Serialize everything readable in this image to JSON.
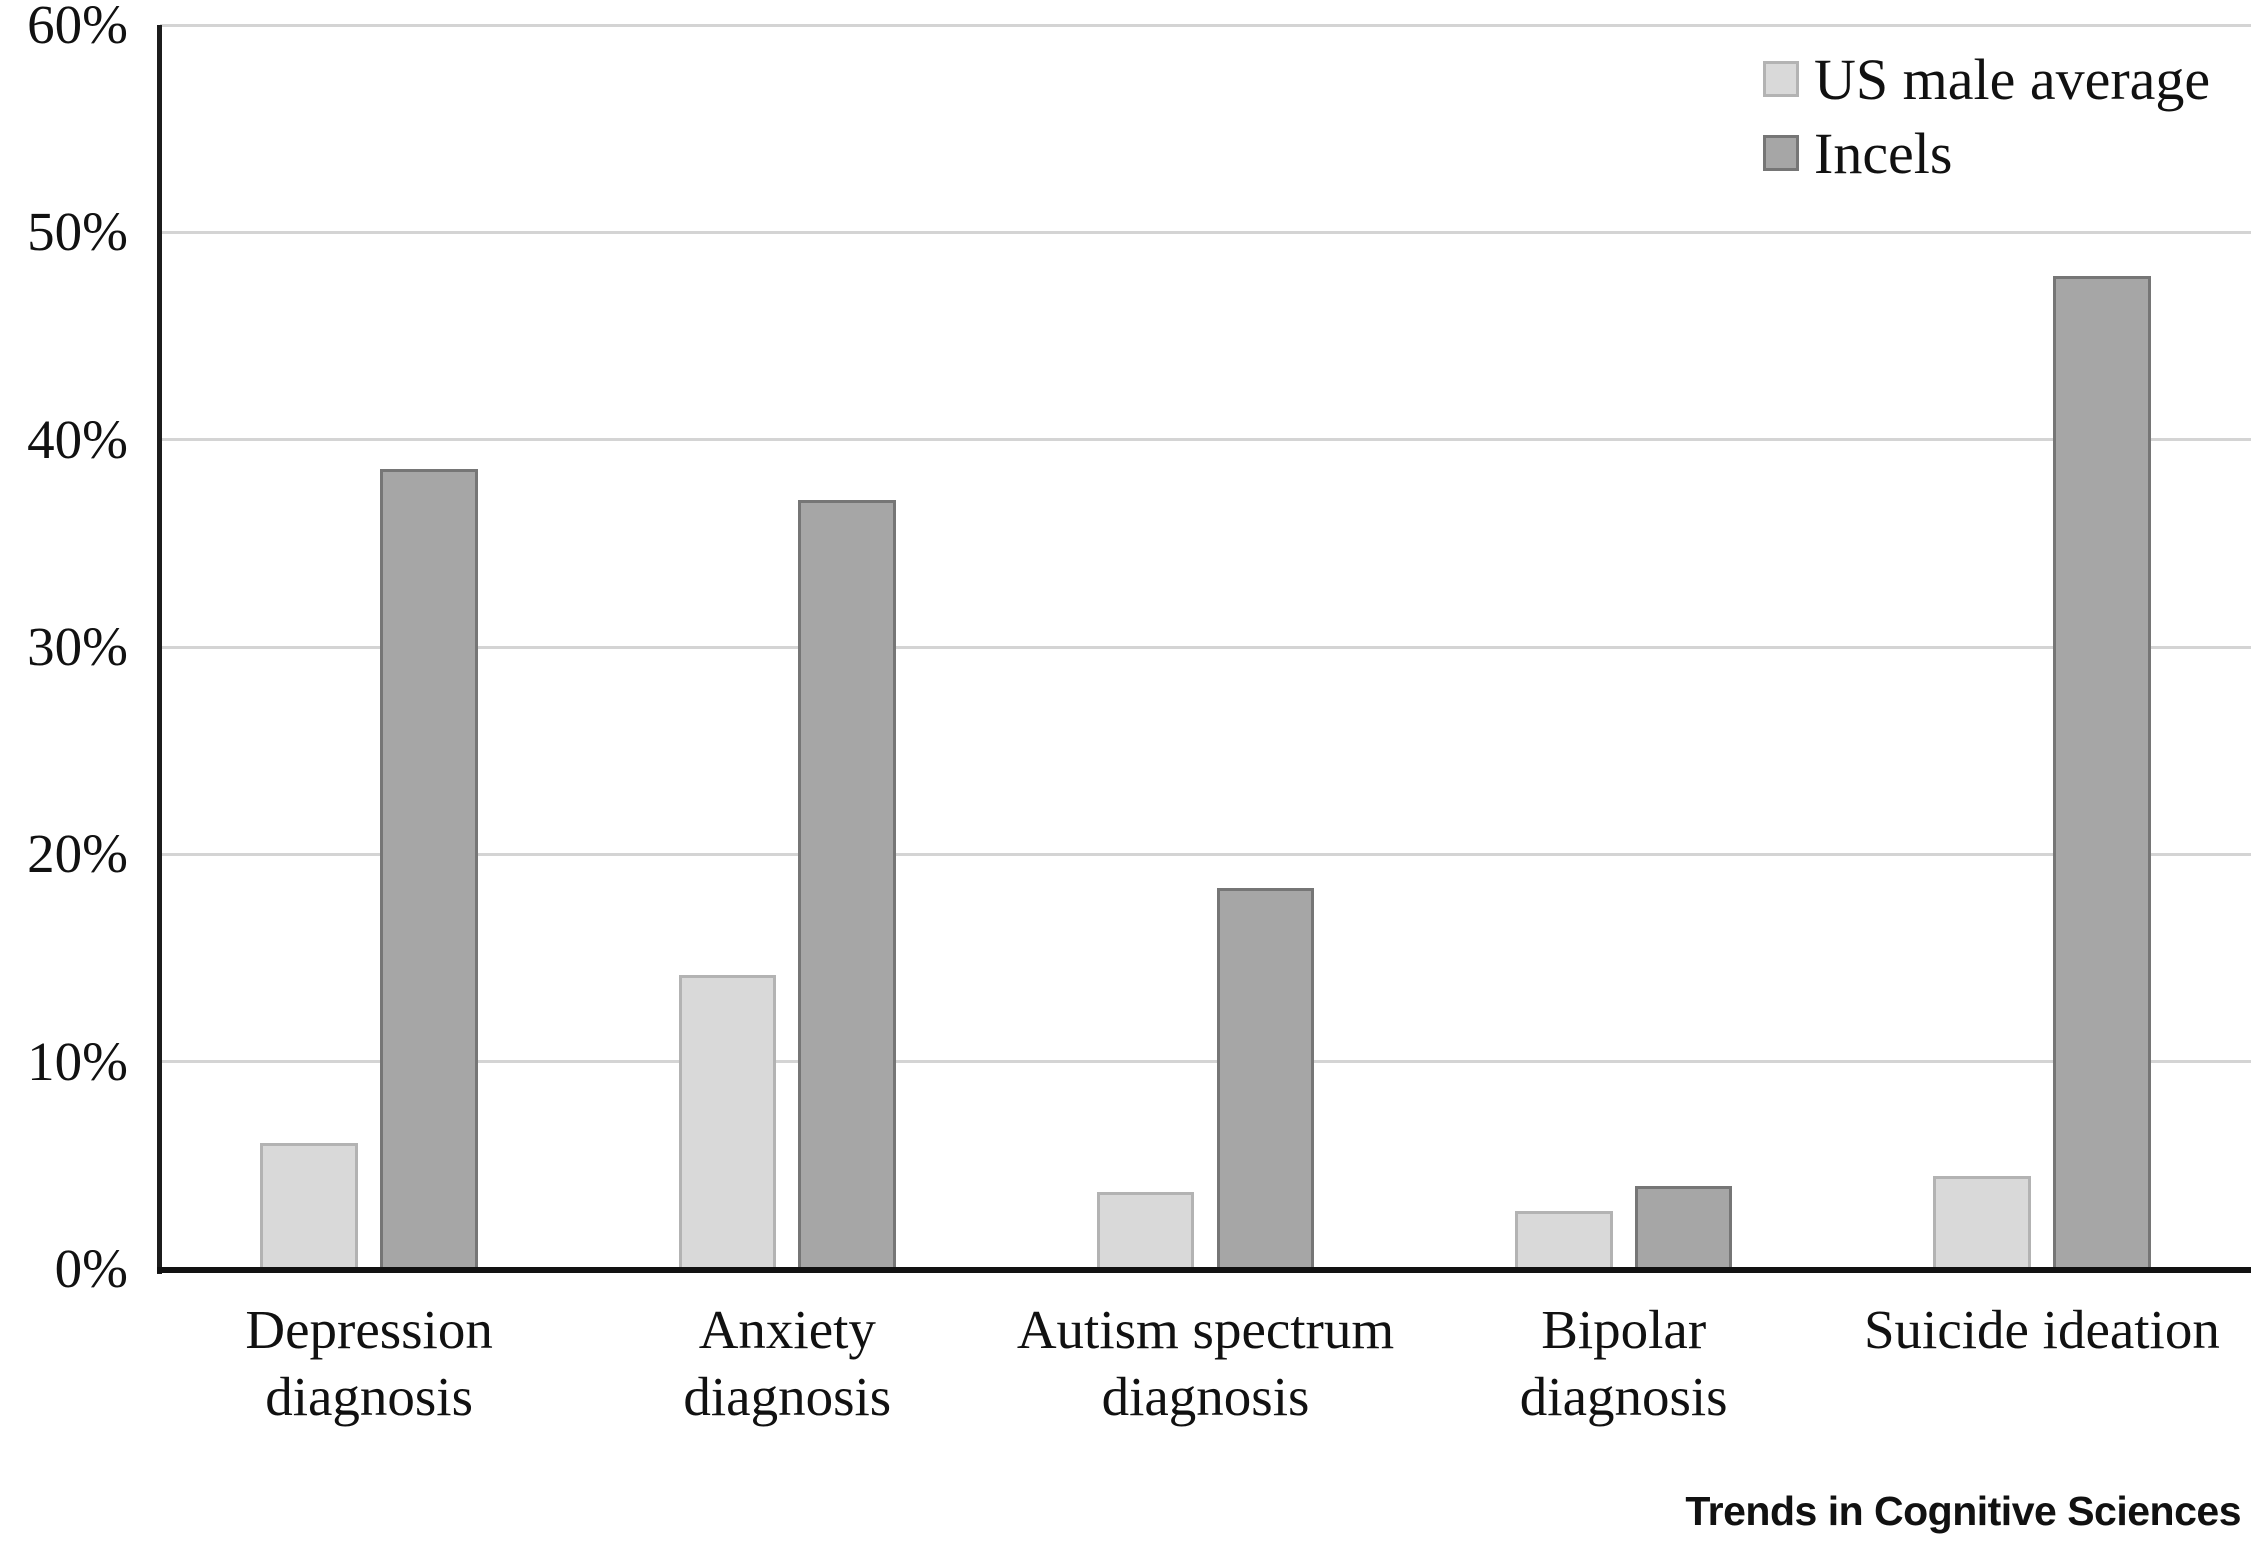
{
  "chart_data": {
    "type": "bar",
    "title": "",
    "xlabel": "",
    "ylabel": "",
    "ylim": [
      0,
      60
    ],
    "ytick_step": 10,
    "yticks": [
      "0%",
      "10%",
      "20%",
      "30%",
      "40%",
      "50%",
      "60%"
    ],
    "grid": true,
    "gridline_color": "#d4d4d4",
    "axis_color": "#111111",
    "legend_position": "top-right",
    "categories": [
      {
        "label": "Depression diagnosis",
        "lines": [
          "Depression",
          "diagnosis"
        ]
      },
      {
        "label": "Anxiety diagnosis",
        "lines": [
          "Anxiety",
          "diagnosis"
        ]
      },
      {
        "label": "Autism spectrum diagnosis",
        "lines": [
          "Autism spectrum",
          "diagnosis"
        ]
      },
      {
        "label": "Bipolar diagnosis",
        "lines": [
          "Bipolar",
          "diagnosis"
        ]
      },
      {
        "label": "Suicide ideation",
        "lines": [
          "Suicide ideation"
        ]
      }
    ],
    "series": [
      {
        "name": "US male average",
        "values": [
          6.1,
          14.2,
          3.7,
          2.8,
          4.5
        ],
        "fill": "#d9d9d9",
        "border": "#b3b3b3"
      },
      {
        "name": "Incels",
        "values": [
          38.6,
          37.1,
          18.4,
          4.0,
          47.9
        ],
        "fill": "#a6a6a6",
        "border": "#767676"
      }
    ]
  },
  "footer": {
    "brand": "Trends in Cognitive Sciences"
  }
}
